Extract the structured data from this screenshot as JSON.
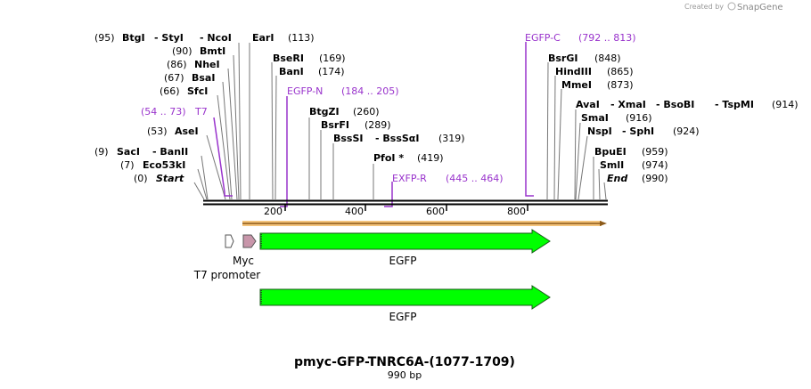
{
  "credit": {
    "prefix": "Created by",
    "brand": "SnapGene"
  },
  "title": "pmyc-GFP-TNRC6A-(1077-1709)",
  "length_label": "990 bp",
  "ticks": [
    "200",
    "400",
    "600",
    "800"
  ],
  "sites": {
    "s95": {
      "pos": "(95)",
      "names": [
        "BtgI",
        "StyI",
        "NcoI"
      ]
    },
    "s90": {
      "pos": "(90)",
      "name": "BmtI"
    },
    "s86": {
      "pos": "(86)",
      "name": "NheI"
    },
    "s67": {
      "pos": "(67)",
      "name": "BsaI"
    },
    "s66": {
      "pos": "(66)",
      "name": "SfcI"
    },
    "s53": {
      "pos": "(53)",
      "name": "AseI"
    },
    "s9": {
      "pos": "(9)",
      "names": [
        "SacI",
        "BanII"
      ]
    },
    "s7": {
      "pos": "(7)",
      "name": "Eco53kI"
    },
    "s0": {
      "pos": "(0)",
      "name": "Start"
    },
    "s113": {
      "name": "EarI",
      "pos": "(113)"
    },
    "s169": {
      "name": "BseRI",
      "pos": "(169)"
    },
    "s174": {
      "name": "BanI",
      "pos": "(174)"
    },
    "s260": {
      "name": "BtgZI",
      "pos": "(260)"
    },
    "s289": {
      "name": "BsrFI",
      "pos": "(289)"
    },
    "s319": {
      "names": [
        "BssSI",
        "BssSαI"
      ],
      "pos": "(319)"
    },
    "s419": {
      "name": "PfoI *",
      "pos": "(419)"
    },
    "s848": {
      "name": "BsrGI",
      "pos": "(848)"
    },
    "s865": {
      "name": "HindIII",
      "pos": "(865)"
    },
    "s873": {
      "name": "MmeI",
      "pos": "(873)"
    },
    "s914": {
      "names": [
        "AvaI",
        "XmaI",
        "BsoBI",
        "TspMI"
      ],
      "pos": "(914)"
    },
    "s916": {
      "name": "SmaI",
      "pos": "(916)"
    },
    "s924": {
      "names": [
        "NspI",
        "SphI"
      ],
      "pos": "(924)"
    },
    "s959": {
      "name": "BpuEI",
      "pos": "(959)"
    },
    "s974": {
      "name": "SmlI",
      "pos": "(974)"
    },
    "s990": {
      "name": "End",
      "pos": "(990)"
    }
  },
  "primers": {
    "t7": {
      "range": "(54 .. 73)",
      "name": "T7"
    },
    "egfpn": {
      "name": "EGFP-N",
      "range": "(184 .. 205)"
    },
    "exfpr": {
      "name": "EXFP-R",
      "range": "(445 .. 464)"
    },
    "egfpc": {
      "name": "EGFP-C",
      "range": "(792 .. 813)"
    }
  },
  "features": {
    "myc": "Myc",
    "t7promoter": "T7 promoter",
    "egfp1": "EGFP",
    "egfp2": "EGFP"
  },
  "colors": {
    "primer": "#9933cc",
    "egfp": "#00ff00",
    "myc": "#c896aa",
    "orf": "#f4c47c"
  }
}
